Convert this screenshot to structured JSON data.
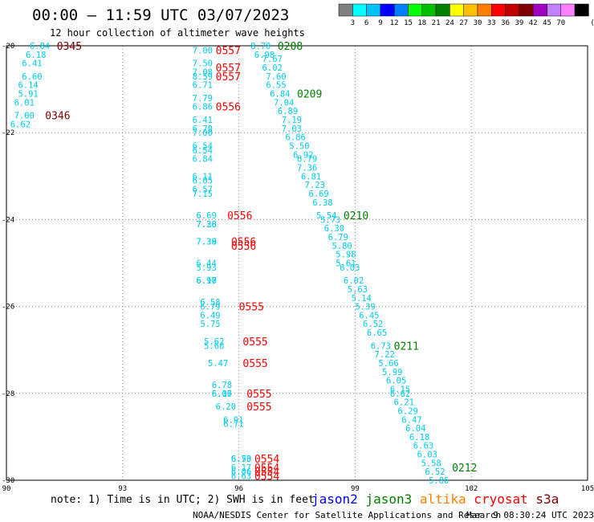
{
  "header": {
    "title": "00:00 — 11:59 UTC 03/07/2023",
    "subtitle": "12 hour collection of altimeter wave heights"
  },
  "color_legend": {
    "swatches": [
      "#808080",
      "#00ffff",
      "#00c0ff",
      "#0000ff",
      "#0080ff",
      "#00ff00",
      "#00c000",
      "#008000",
      "#ffff00",
      "#ffc000",
      "#ff8000",
      "#ff0000",
      "#c00000",
      "#800000",
      "#a000c0",
      "#c080ff",
      "#ff80ff",
      "#000000"
    ],
    "labels": [
      "3",
      "6",
      "9",
      "12",
      "15",
      "18",
      "21",
      "24",
      "27",
      "30",
      "33",
      "36",
      "39",
      "42",
      "45",
      "70"
    ],
    "unit": "(ft)"
  },
  "footer": {
    "note": "note:  1) Time is in UTC; 2) SWH is in feet",
    "satellites": [
      {
        "name": "jason2",
        "color": "#0000ff"
      },
      {
        "name": "jason3",
        "color": "#008000"
      },
      {
        "name": "altika",
        "color": "#ff8000"
      },
      {
        "name": "cryosat",
        "color": "#ff0000"
      },
      {
        "name": "s3a",
        "color": "#800000"
      }
    ],
    "credit": "NOAA/NESDIS Center for Satellite Applications and Research",
    "timestamp": "Mar  9 08:30:24 UTC 2023"
  },
  "chart_data": {
    "type": "scatter",
    "xlim": [
      90,
      105
    ],
    "ylim": [
      -30,
      -20
    ],
    "x_ticks": [
      "90",
      "93",
      "96",
      "99",
      "102",
      "105"
    ],
    "y_ticks": [
      "-20",
      "-22",
      "-24",
      "-26",
      "-28",
      "-30"
    ],
    "grid": true,
    "value_color": "#00ccee",
    "value_labels": [
      {
        "x": 90.6,
        "y": -20.0,
        "v": "6.84"
      },
      {
        "x": 90.5,
        "y": -20.2,
        "v": "6.18"
      },
      {
        "x": 90.4,
        "y": -20.4,
        "v": "6.41"
      },
      {
        "x": 90.4,
        "y": -20.7,
        "v": "6.60"
      },
      {
        "x": 90.3,
        "y": -20.9,
        "v": "6.14"
      },
      {
        "x": 90.3,
        "y": -21.1,
        "v": "5.91"
      },
      {
        "x": 90.2,
        "y": -21.3,
        "v": "6.01"
      },
      {
        "x": 90.2,
        "y": -21.6,
        "v": "7.00"
      },
      {
        "x": 90.1,
        "y": -21.8,
        "v": "6.62"
      },
      {
        "x": 94.8,
        "y": -20.1,
        "v": "7.00"
      },
      {
        "x": 94.8,
        "y": -20.4,
        "v": "7.50"
      },
      {
        "x": 94.8,
        "y": -20.6,
        "v": "7.08"
      },
      {
        "x": 94.8,
        "y": -20.7,
        "v": "8.59"
      },
      {
        "x": 94.8,
        "y": -20.9,
        "v": "6.71"
      },
      {
        "x": 94.8,
        "y": -21.2,
        "v": "7.79"
      },
      {
        "x": 94.8,
        "y": -21.4,
        "v": "6.86"
      },
      {
        "x": 94.8,
        "y": -21.7,
        "v": "6.41"
      },
      {
        "x": 94.8,
        "y": -21.9,
        "v": "6.70"
      },
      {
        "x": 94.8,
        "y": -22.0,
        "v": "7.00"
      },
      {
        "x": 94.8,
        "y": -22.3,
        "v": "6.54"
      },
      {
        "x": 94.8,
        "y": -22.4,
        "v": "6.54"
      },
      {
        "x": 94.8,
        "y": -22.6,
        "v": "6.84"
      },
      {
        "x": 94.8,
        "y": -23.0,
        "v": "6.11"
      },
      {
        "x": 94.8,
        "y": -23.1,
        "v": "6.05"
      },
      {
        "x": 94.8,
        "y": -23.3,
        "v": "6.57"
      },
      {
        "x": 94.8,
        "y": -23.4,
        "v": "7.15"
      },
      {
        "x": 94.9,
        "y": -23.9,
        "v": "6.69"
      },
      {
        "x": 94.9,
        "y": -24.1,
        "v": "7.28"
      },
      {
        "x": 94.9,
        "y": -24.1,
        "v": "7.36"
      },
      {
        "x": 94.9,
        "y": -24.5,
        "v": "7.39"
      },
      {
        "x": 94.9,
        "y": -24.5,
        "v": "7.38"
      },
      {
        "x": 94.9,
        "y": -25.0,
        "v": "6.44"
      },
      {
        "x": 94.9,
        "y": -25.1,
        "v": "5.93"
      },
      {
        "x": 94.9,
        "y": -25.4,
        "v": "6.97"
      },
      {
        "x": 94.9,
        "y": -25.4,
        "v": "6.10"
      },
      {
        "x": 95.0,
        "y": -25.9,
        "v": "6.58"
      },
      {
        "x": 95.0,
        "y": -26.0,
        "v": "6.79"
      },
      {
        "x": 95.0,
        "y": -26.2,
        "v": "6.49"
      },
      {
        "x": 95.0,
        "y": -26.4,
        "v": "5.75"
      },
      {
        "x": 95.1,
        "y": -26.8,
        "v": "5.62"
      },
      {
        "x": 95.1,
        "y": -26.9,
        "v": "5.66"
      },
      {
        "x": 95.2,
        "y": -27.3,
        "v": "5.47"
      },
      {
        "x": 95.3,
        "y": -27.8,
        "v": "6.78"
      },
      {
        "x": 95.3,
        "y": -28.0,
        "v": "6.16"
      },
      {
        "x": 95.3,
        "y": -28.0,
        "v": "6.07"
      },
      {
        "x": 95.4,
        "y": -28.3,
        "v": "6.20"
      },
      {
        "x": 95.6,
        "y": -28.6,
        "v": "6.91"
      },
      {
        "x": 95.6,
        "y": -28.7,
        "v": "6.71"
      },
      {
        "x": 95.8,
        "y": -29.5,
        "v": "6.73"
      },
      {
        "x": 95.8,
        "y": -29.5,
        "v": "6.50"
      },
      {
        "x": 95.8,
        "y": -29.7,
        "v": "6.17"
      },
      {
        "x": 95.8,
        "y": -29.8,
        "v": "6.06"
      },
      {
        "x": 95.8,
        "y": -29.9,
        "v": "6.63"
      },
      {
        "x": 96.3,
        "y": -20.0,
        "v": "8.70"
      },
      {
        "x": 96.4,
        "y": -20.2,
        "v": "6.98"
      },
      {
        "x": 96.6,
        "y": -20.3,
        "v": "7.67"
      },
      {
        "x": 96.6,
        "y": -20.5,
        "v": "6.02"
      },
      {
        "x": 96.7,
        "y": -20.7,
        "v": "7.60"
      },
      {
        "x": 96.7,
        "y": -20.9,
        "v": "6.55"
      },
      {
        "x": 96.8,
        "y": -21.1,
        "v": "6.84"
      },
      {
        "x": 96.9,
        "y": -21.3,
        "v": "7.04"
      },
      {
        "x": 97.0,
        "y": -21.5,
        "v": "6.89"
      },
      {
        "x": 97.1,
        "y": -21.7,
        "v": "7.19"
      },
      {
        "x": 97.1,
        "y": -21.9,
        "v": "7.03"
      },
      {
        "x": 97.2,
        "y": -22.1,
        "v": "6.86"
      },
      {
        "x": 97.3,
        "y": -22.3,
        "v": "5.50"
      },
      {
        "x": 97.4,
        "y": -22.5,
        "v": "6.92"
      },
      {
        "x": 97.5,
        "y": -22.6,
        "v": "6.79"
      },
      {
        "x": 97.5,
        "y": -22.8,
        "v": "7.36"
      },
      {
        "x": 97.6,
        "y": -23.0,
        "v": "6.81"
      },
      {
        "x": 97.7,
        "y": -23.2,
        "v": "7.23"
      },
      {
        "x": 97.8,
        "y": -23.4,
        "v": "6.69"
      },
      {
        "x": 97.9,
        "y": -23.6,
        "v": "6.38"
      },
      {
        "x": 98.0,
        "y": -23.9,
        "v": "5.54"
      },
      {
        "x": 98.1,
        "y": -24.0,
        "v": "5.73"
      },
      {
        "x": 98.2,
        "y": -24.2,
        "v": "6.30"
      },
      {
        "x": 98.3,
        "y": -24.4,
        "v": "6.79"
      },
      {
        "x": 98.4,
        "y": -24.6,
        "v": "5.80"
      },
      {
        "x": 98.5,
        "y": -24.8,
        "v": "5.98"
      },
      {
        "x": 98.5,
        "y": -25.0,
        "v": "5.61"
      },
      {
        "x": 98.6,
        "y": -25.1,
        "v": "6.03"
      },
      {
        "x": 98.7,
        "y": -25.4,
        "v": "6.02"
      },
      {
        "x": 98.8,
        "y": -25.6,
        "v": "5.63"
      },
      {
        "x": 98.9,
        "y": -25.8,
        "v": "5.14"
      },
      {
        "x": 99.0,
        "y": -26.0,
        "v": "5.39"
      },
      {
        "x": 99.1,
        "y": -26.2,
        "v": "6.45"
      },
      {
        "x": 99.2,
        "y": -26.4,
        "v": "6.52"
      },
      {
        "x": 99.3,
        "y": -26.6,
        "v": "6.65"
      },
      {
        "x": 99.4,
        "y": -26.9,
        "v": "6.73"
      },
      {
        "x": 99.5,
        "y": -27.1,
        "v": "7.22"
      },
      {
        "x": 99.6,
        "y": -27.3,
        "v": "5.66"
      },
      {
        "x": 99.7,
        "y": -27.5,
        "v": "5.99"
      },
      {
        "x": 99.8,
        "y": -27.7,
        "v": "6.05"
      },
      {
        "x": 99.9,
        "y": -27.9,
        "v": "6.15"
      },
      {
        "x": 99.9,
        "y": -28.0,
        "v": "6.62"
      },
      {
        "x": 100.0,
        "y": -28.2,
        "v": "6.21"
      },
      {
        "x": 100.1,
        "y": -28.4,
        "v": "6.29"
      },
      {
        "x": 100.2,
        "y": -28.6,
        "v": "6.47"
      },
      {
        "x": 100.3,
        "y": -28.8,
        "v": "6.04"
      },
      {
        "x": 100.4,
        "y": -29.0,
        "v": "6.18"
      },
      {
        "x": 100.5,
        "y": -29.2,
        "v": "6.63"
      },
      {
        "x": 100.6,
        "y": -29.4,
        "v": "6.03"
      },
      {
        "x": 100.7,
        "y": -29.6,
        "v": "5.58"
      },
      {
        "x": 100.8,
        "y": -29.8,
        "v": "6.52"
      },
      {
        "x": 100.9,
        "y": -30.0,
        "v": "5.86"
      }
    ],
    "time_labels": [
      {
        "x": 91.3,
        "y": -20.0,
        "t": "0345",
        "color": "#800000"
      },
      {
        "x": 91.0,
        "y": -21.6,
        "t": "0346",
        "color": "#800000"
      },
      {
        "x": 95.4,
        "y": -20.1,
        "t": "0557",
        "color": "#ff0000"
      },
      {
        "x": 95.4,
        "y": -20.5,
        "t": "0557",
        "color": "#ff0000"
      },
      {
        "x": 95.4,
        "y": -20.7,
        "t": "0557",
        "color": "#ff0000"
      },
      {
        "x": 95.4,
        "y": -21.4,
        "t": "0556",
        "color": "#ff0000"
      },
      {
        "x": 95.7,
        "y": -23.9,
        "t": "0556",
        "color": "#ff0000"
      },
      {
        "x": 95.8,
        "y": -24.5,
        "t": "0556",
        "color": "#ff0000"
      },
      {
        "x": 95.8,
        "y": -24.6,
        "t": "0556",
        "color": "#ff0000"
      },
      {
        "x": 96.0,
        "y": -26.0,
        "t": "0555",
        "color": "#ff0000"
      },
      {
        "x": 96.1,
        "y": -26.8,
        "t": "0555",
        "color": "#ff0000"
      },
      {
        "x": 96.1,
        "y": -27.3,
        "t": "0555",
        "color": "#ff0000"
      },
      {
        "x": 96.2,
        "y": -28.0,
        "t": "0555",
        "color": "#ff0000"
      },
      {
        "x": 96.2,
        "y": -28.3,
        "t": "0555",
        "color": "#ff0000"
      },
      {
        "x": 96.4,
        "y": -29.5,
        "t": "0554",
        "color": "#ff0000"
      },
      {
        "x": 96.4,
        "y": -29.7,
        "t": "0554",
        "color": "#ff0000"
      },
      {
        "x": 96.4,
        "y": -29.8,
        "t": "0554",
        "color": "#ff0000"
      },
      {
        "x": 96.4,
        "y": -29.9,
        "t": "0554",
        "color": "#ff0000"
      },
      {
        "x": 97.0,
        "y": -20.0,
        "t": "0208",
        "color": "#008000"
      },
      {
        "x": 97.5,
        "y": -21.1,
        "t": "0209",
        "color": "#008000"
      },
      {
        "x": 98.7,
        "y": -23.9,
        "t": "0210",
        "color": "#008000"
      },
      {
        "x": 100.0,
        "y": -26.9,
        "t": "0211",
        "color": "#008000"
      },
      {
        "x": 101.5,
        "y": -29.7,
        "t": "0212",
        "color": "#008000"
      }
    ]
  }
}
